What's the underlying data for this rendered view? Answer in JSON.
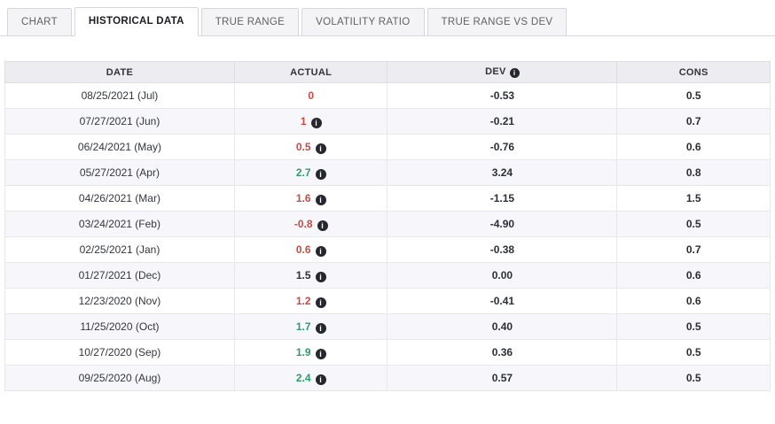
{
  "tabs": [
    {
      "label": "CHART",
      "active": false
    },
    {
      "label": "HISTORICAL DATA",
      "active": true
    },
    {
      "label": "TRUE RANGE",
      "active": false
    },
    {
      "label": "VOLATILITY RATIO",
      "active": false
    },
    {
      "label": "TRUE RANGE VS DEV",
      "active": false
    }
  ],
  "colors": {
    "red": "#c74a43",
    "green": "#2e9c6b",
    "dark": "#2b2e34"
  },
  "table": {
    "headers": {
      "date": "DATE",
      "actual": "ACTUAL",
      "dev": "DEV",
      "cons": "CONS"
    },
    "rows": [
      {
        "date": "08/25/2021 (Jul)",
        "actual": "0",
        "color": "red",
        "info": false,
        "dev": "-0.53",
        "cons": "0.5"
      },
      {
        "date": "07/27/2021 (Jun)",
        "actual": "1",
        "color": "red",
        "info": true,
        "dev": "-0.21",
        "cons": "0.7"
      },
      {
        "date": "06/24/2021 (May)",
        "actual": "0.5",
        "color": "red",
        "info": true,
        "dev": "-0.76",
        "cons": "0.6"
      },
      {
        "date": "05/27/2021 (Apr)",
        "actual": "2.7",
        "color": "green",
        "info": true,
        "dev": "3.24",
        "cons": "0.8"
      },
      {
        "date": "04/26/2021 (Mar)",
        "actual": "1.6",
        "color": "red",
        "info": true,
        "dev": "-1.15",
        "cons": "1.5"
      },
      {
        "date": "03/24/2021 (Feb)",
        "actual": "-0.8",
        "color": "red",
        "info": true,
        "dev": "-4.90",
        "cons": "0.5"
      },
      {
        "date": "02/25/2021 (Jan)",
        "actual": "0.6",
        "color": "red",
        "info": true,
        "dev": "-0.38",
        "cons": "0.7"
      },
      {
        "date": "01/27/2021 (Dec)",
        "actual": "1.5",
        "color": "dark",
        "info": true,
        "dev": "0.00",
        "cons": "0.6"
      },
      {
        "date": "12/23/2020 (Nov)",
        "actual": "1.2",
        "color": "red",
        "info": true,
        "dev": "-0.41",
        "cons": "0.6"
      },
      {
        "date": "11/25/2020 (Oct)",
        "actual": "1.7",
        "color": "green",
        "info": true,
        "dev": "0.40",
        "cons": "0.5"
      },
      {
        "date": "10/27/2020 (Sep)",
        "actual": "1.9",
        "color": "green",
        "info": true,
        "dev": "0.36",
        "cons": "0.5"
      },
      {
        "date": "09/25/2020 (Aug)",
        "actual": "2.4",
        "color": "green",
        "info": true,
        "dev": "0.57",
        "cons": "0.5"
      }
    ]
  }
}
